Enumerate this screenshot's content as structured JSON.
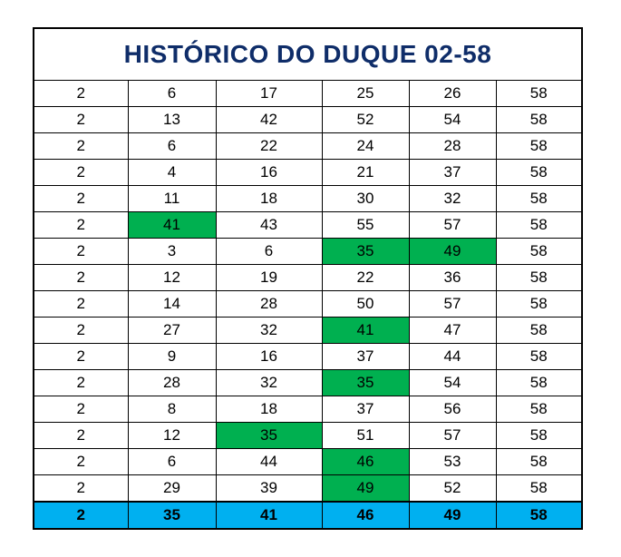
{
  "title": "HISTÓRICO DO DUQUE 02-58",
  "rows": [
    [
      2,
      6,
      17,
      25,
      26,
      58
    ],
    [
      2,
      13,
      42,
      52,
      54,
      58
    ],
    [
      2,
      6,
      22,
      24,
      28,
      58
    ],
    [
      2,
      4,
      16,
      21,
      37,
      58
    ],
    [
      2,
      11,
      18,
      30,
      32,
      58
    ],
    [
      2,
      41,
      43,
      55,
      57,
      58
    ],
    [
      2,
      3,
      6,
      35,
      49,
      58
    ],
    [
      2,
      12,
      19,
      22,
      36,
      58
    ],
    [
      2,
      14,
      28,
      50,
      57,
      58
    ],
    [
      2,
      27,
      32,
      41,
      47,
      58
    ],
    [
      2,
      9,
      16,
      37,
      44,
      58
    ],
    [
      2,
      28,
      32,
      35,
      54,
      58
    ],
    [
      2,
      8,
      18,
      37,
      56,
      58
    ],
    [
      2,
      12,
      35,
      51,
      57,
      58
    ],
    [
      2,
      6,
      44,
      46,
      53,
      58
    ],
    [
      2,
      29,
      39,
      49,
      52,
      58
    ]
  ],
  "footer": [
    2,
    35,
    41,
    46,
    49,
    58
  ]
}
